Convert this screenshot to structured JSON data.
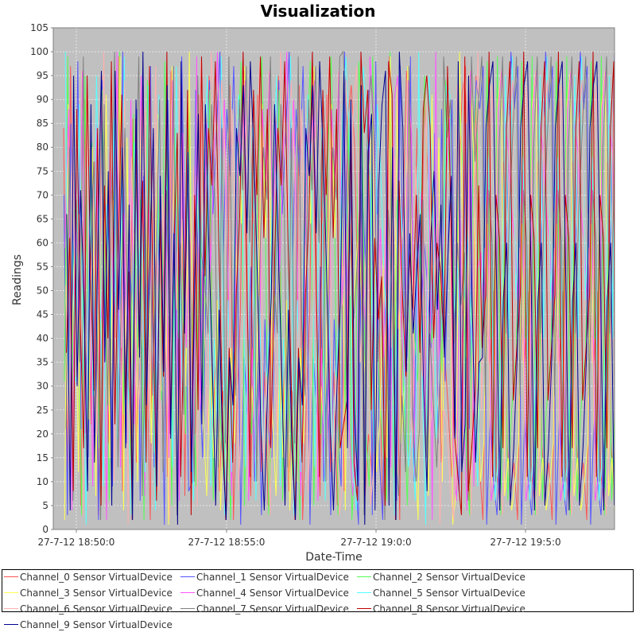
{
  "chart_data": {
    "type": "line",
    "title": "Visualization",
    "xlabel": "Date-Time",
    "ylabel": "Readings",
    "ylim": [
      0,
      105
    ],
    "y_ticks": [
      0,
      5,
      10,
      15,
      20,
      25,
      30,
      35,
      40,
      45,
      50,
      55,
      60,
      65,
      70,
      75,
      80,
      85,
      90,
      95,
      100,
      105
    ],
    "x_ticks": [
      "27-7-12 18:50:0",
      "27-7-12 18:55:0",
      "27-7-12 19:0:0",
      "27-7-12 19:5:0"
    ],
    "grid": true,
    "legend_position": "bottom",
    "plot_background": "#c0c0c0",
    "series": [
      {
        "name": "Channel_0 Sensor VirtualDevice",
        "color": "#ff5555",
        "values": [
          84,
          12,
          97,
          33,
          61,
          5,
          90,
          48,
          22,
          77,
          3,
          95,
          56,
          18,
          71,
          40,
          99,
          8,
          64,
          29,
          86,
          14,
          52,
          93,
          37,
          2,
          80,
          25,
          68,
          45,
          11,
          96,
          59,
          34,
          88,
          7,
          73,
          50,
          20,
          91
        ]
      },
      {
        "name": "Channel_1 Sensor VirtualDevice",
        "color": "#5555ff",
        "values": [
          10,
          92,
          35,
          70,
          3,
          85,
          44,
          98,
          21,
          60,
          15,
          79,
          50,
          2,
          94,
          38,
          66,
          9,
          83,
          27,
          100,
          18,
          57,
          41,
          88,
          6,
          74,
          31,
          97,
          13,
          63,
          47,
          1,
          90,
          36,
          76,
          24,
          99,
          55,
          8
        ]
      },
      {
        "name": "Channel_2 Sensor VirtualDevice",
        "color": "#55ff55",
        "values": [
          55,
          20,
          88,
          42,
          9,
          76,
          31,
          99,
          14,
          67,
          50,
          3,
          95,
          28,
          81,
          60,
          17,
          92,
          39,
          6,
          72,
          46,
          100,
          24,
          58,
          11,
          87,
          33,
          69,
          2,
          94,
          49,
          16,
          78,
          27,
          98,
          63,
          5,
          84,
          40
        ]
      },
      {
        "name": "Channel_3 Sensor VirtualDevice",
        "color": "#ffff55",
        "values": [
          97,
          40,
          8,
          65,
          30,
          100,
          19,
          74,
          53,
          2,
          89,
          36,
          61,
          12,
          96,
          45,
          23,
          80,
          7,
          57,
          34,
          91,
          15,
          69,
          48,
          99,
          4,
          82,
          26,
          62,
          10,
          93,
          38,
          71,
          18,
          55,
          87,
          29,
          64,
          1
        ]
      },
      {
        "name": "Channel_4 Sensor VirtualDevice",
        "color": "#ff55ff",
        "values": [
          30,
          75,
          15,
          94,
          52,
          6,
          83,
          38,
          67,
          11,
          99,
          25,
          59,
          88,
          4,
          71,
          42,
          96,
          20,
          63,
          9,
          85,
          36,
          54,
          2,
          79,
          47,
          100,
          13,
          66,
          33,
          90,
          22,
          58,
          95,
          7,
          74,
          44,
          17,
          86
        ]
      },
      {
        "name": "Channel_5 Sensor VirtualDevice",
        "color": "#55ffff",
        "values": [
          66,
          4,
          91,
          26,
          78,
          43,
          13,
          97,
          58,
          21,
          84,
          37,
          6,
          73,
          49,
          100,
          16,
          62,
          31,
          89,
          45,
          1,
          76,
          28,
          95,
          52,
          9,
          68,
          40,
          86,
          19,
          57,
          99,
          35,
          3,
          81,
          48,
          70,
          12,
          93
        ]
      },
      {
        "name": "Channel_6 Sensor VirtualDevice",
        "color": "#ffafaf",
        "values": [
          42,
          88,
          23,
          59,
          97,
          8,
          70,
          35,
          2,
          81,
          46,
          93,
          17,
          64,
          29,
          76,
          5,
          98,
          51,
          14,
          87,
          32,
          66,
          3,
          91,
          44,
          73,
          20,
          56,
          100,
          27,
          85,
          10,
          63,
          38,
          94,
          1,
          78,
          49,
          25
        ]
      },
      {
        "name": "Channel_7 Sensor VirtualDevice",
        "color": "#808080",
        "values": [
          18,
          63,
          99,
          7,
          44,
          82,
          28,
          55,
          90,
          12,
          71,
          39,
          97,
          3,
          60,
          24,
          86,
          47,
          10,
          95,
          58,
          21,
          80,
          6,
          69,
          35,
          99,
          15,
          52,
          77,
          41,
          2,
          89,
          26,
          67,
          100,
          13,
          50,
          84,
          32
        ]
      },
      {
        "name": "Channel_8 Sensor VirtualDevice",
        "color": "#c00000",
        "values": [
          91,
          27,
          54,
          2,
          86,
          38,
          73,
          14,
          97,
          49,
          6,
          65,
          32,
          100,
          20,
          58,
          83,
          11,
          46,
          92,
          3,
          70,
          25,
          99,
          37,
          61,
          8,
          88,
          44,
          17,
          95,
          53,
          29,
          84,
          5,
          72,
          40,
          98,
          22,
          60
        ]
      },
      {
        "name": "Channel_9 Sensor VirtualDevice",
        "color": "#000090",
        "values": [
          5,
          96,
          46,
          80,
          17,
          68,
          2,
          90,
          36,
          100,
          26,
          57,
          84,
          9,
          74,
          33,
          93,
          19,
          62,
          1,
          98,
          41,
          79,
          12,
          54,
          87,
          22,
          66,
          4,
          95,
          30,
          71,
          48,
          8,
          89,
          14,
          60,
          96,
          35,
          75
        ]
      }
    ]
  }
}
